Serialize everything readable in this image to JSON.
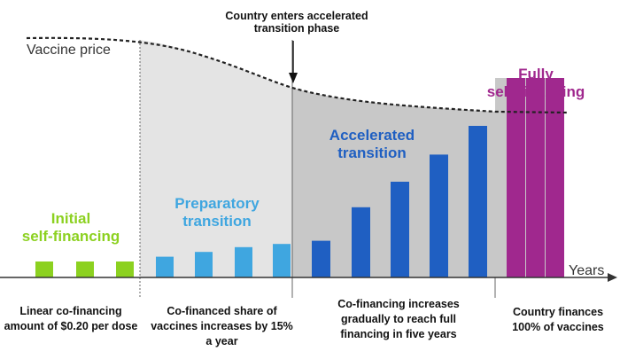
{
  "vaccine_price_label": "Vaccine price",
  "years_label": "Years",
  "callout": {
    "line1": "Country enters accelerated",
    "line2": "transition phase"
  },
  "phases": [
    {
      "title_lines": [
        "Initial",
        "self-financing"
      ],
      "color": "#8cd120",
      "desc_lines": [
        "Linear co-financing",
        "amount of $0.20 per dose"
      ],
      "bars": [
        1,
        1,
        1
      ]
    },
    {
      "title_lines": [
        "Preparatory",
        "transition"
      ],
      "color": "#3fa6e0",
      "desc_lines": [
        "Co-financed share of",
        "vaccines increases by 15%",
        "a year"
      ],
      "bars": [
        1.3,
        1.6,
        1.9,
        2.1
      ]
    },
    {
      "title_lines": [
        "Accelerated",
        "transition"
      ],
      "color": "#1f5fc2",
      "desc_lines": [
        "Co-financing increases",
        "gradually to reach full",
        "financing in five years"
      ],
      "bars": [
        2.3,
        4.4,
        6.0,
        7.7,
        9.5
      ]
    },
    {
      "title_lines": [
        "Fully",
        "self-financing"
      ],
      "color": "#a0288e",
      "desc_lines": [
        "Country finances",
        "100% of vaccines"
      ],
      "bars": [
        12.5,
        12.5,
        12.5
      ]
    }
  ],
  "colors": {
    "shade_preparatory": "#e4e4e4",
    "shade_accelerated": "#c8c8c8",
    "fully_bg_stripe": "#c8c8c8",
    "axis": "#333333",
    "price_curve": "#222222"
  }
}
